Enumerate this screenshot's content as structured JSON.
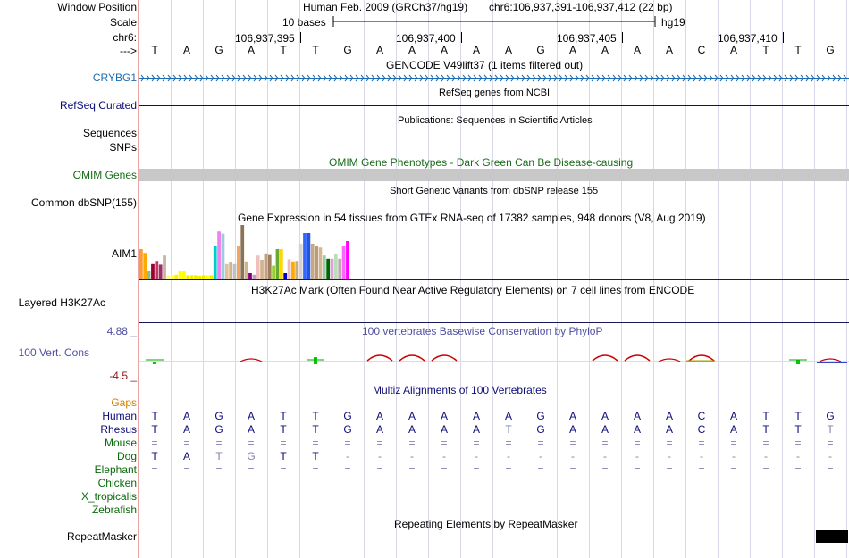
{
  "labels": {
    "window_position": "Window Position",
    "scale": "Scale",
    "chr": "chr6:",
    "arrow": "--->",
    "crybg1": "CRYBG1",
    "refseq": "RefSeq Curated",
    "sequences": "Sequences",
    "snps": "SNPs",
    "omim": "OMIM Genes",
    "dbsnp": "Common dbSNP(155)",
    "aim1": "AIM1",
    "h3k27ac": "Layered H3K27Ac",
    "phylop_max": "4.88 _",
    "cons": "100 Vert. Cons",
    "phylop_min": "-4.5 _",
    "gaps": "Gaps",
    "human": "Human",
    "rhesus": "Rhesus",
    "mouse": "Mouse",
    "dog": "Dog",
    "elephant": "Elephant",
    "chicken": "Chicken",
    "xtrop": "X_tropicalis",
    "zebrafish": "Zebrafish",
    "repeatmasker": "RepeatMasker"
  },
  "header": {
    "assembly": "Human Feb. 2009 (GRCh37/hg19)",
    "position": "chr6:106,937,391-106,937,412 (22 bp)",
    "scale_text": "10 bases",
    "scale_db": "hg19",
    "coords": [
      "106,937,395",
      "106,937,400",
      "106,937,405",
      "106,937,410"
    ]
  },
  "titles": {
    "gencode": "GENCODE V49lift37 (1 items filtered out)",
    "refseq": "RefSeq genes from NCBI",
    "publications": "Publications: Sequences in Scientific Articles",
    "omim": "OMIM Gene Phenotypes - Dark Green Can Be Disease-causing",
    "dbsnp": "Short Genetic Variants from dbSNP release 155",
    "gtex": "Gene Expression in 54 tissues from GTEx RNA-seq of 17382 samples, 948 donors (V8, Aug 2019)",
    "h3k27ac": "H3K27Ac Mark (Often Found Near Active Regulatory Elements) on 7 cell lines from ENCODE",
    "phylop": "100 vertebrates Basewise Conservation by PhyloP",
    "multiz": "Multiz Alignments of 100 Vertebrates",
    "repeatmasker": "Repeating Elements by RepeatMasker"
  },
  "sequence": {
    "ruler": [
      "T",
      "A",
      "G",
      "A",
      "T",
      "T",
      "G",
      "A",
      "A",
      "A",
      "A",
      "A",
      "G",
      "A",
      "A",
      "A",
      "A",
      "C",
      "A",
      "T",
      "T",
      "G"
    ],
    "human": [
      "T",
      "A",
      "G",
      "A",
      "T",
      "T",
      "G",
      "A",
      "A",
      "A",
      "A",
      "A",
      "G",
      "A",
      "A",
      "A",
      "A",
      "C",
      "A",
      "T",
      "T",
      "G"
    ],
    "rhesus": [
      "T",
      "A",
      "G",
      "A",
      "T",
      "T",
      "G",
      "A",
      "A",
      "A",
      "A",
      "T",
      "G",
      "A",
      "A",
      "A",
      "A",
      "C",
      "A",
      "T",
      "T",
      "T"
    ],
    "mouse": [
      "=",
      "=",
      "=",
      "=",
      "=",
      "=",
      "=",
      "=",
      "=",
      "=",
      "=",
      "=",
      "=",
      "=",
      "=",
      "=",
      "=",
      "=",
      "=",
      "=",
      "=",
      "="
    ],
    "dog": [
      "T",
      "A",
      "T",
      "G",
      "T",
      "T",
      "-",
      "-",
      "-",
      "-",
      "-",
      "-",
      "-",
      "-",
      "-",
      "-",
      "-",
      "-",
      "-",
      "-",
      "-",
      "-"
    ],
    "elephant": [
      "=",
      "=",
      "=",
      "=",
      "=",
      "=",
      "=",
      "=",
      "=",
      "=",
      "=",
      "=",
      "=",
      "=",
      "=",
      "=",
      "=",
      "=",
      "=",
      "=",
      "=",
      "="
    ]
  },
  "colors": {
    "gene_blue": "#1a6bb0",
    "refseq_navy": "#0c0c78",
    "omim_green": "#1a6b1a",
    "omim_bar": "#c8c8c8",
    "phylop_blue": "#5050a0",
    "phylop_red": "#8b1a1a",
    "gaps_orange": "#d08000",
    "mammal_navy": "#0c0c78",
    "vertebrate_green": "#0a6a0a"
  },
  "gtex_bars": {
    "max": 1.0,
    "values": [
      0.55,
      0.48,
      0.14,
      0.27,
      0.33,
      0.26,
      0.43,
      0.06,
      0.06,
      0.07,
      0.15,
      0.15,
      0.06,
      0.06,
      0.06,
      0.05,
      0.06,
      0.06,
      0.06,
      0.6,
      0.88,
      0.84,
      0.27,
      0.3,
      0.27,
      0.6,
      1.0,
      0.32,
      0.1,
      0.07,
      0.43,
      0.35,
      0.47,
      0.44,
      0.24,
      0.55,
      0.55,
      0.1,
      0.36,
      0.32,
      0.33,
      0.65,
      0.85,
      0.85,
      0.65,
      0.6,
      0.58,
      0.43,
      0.37,
      0.37,
      0.45,
      0.37,
      0.61,
      0.7
    ],
    "colors": [
      "#ff9933",
      "#ffaa00",
      "#8fbc8f",
      "#990033",
      "#cc3366",
      "#993366",
      "#c8b4a0",
      "#ffff66",
      "#ffff33",
      "#ffee00",
      "#ffff00",
      "#ffff00",
      "#eeee00",
      "#eeee00",
      "#eeee00",
      "#eeee00",
      "#eeee00",
      "#ffff00",
      "#eeee00",
      "#00cccc",
      "#ee82ee",
      "#99ccdd",
      "#e0c0a0",
      "#d2b48c",
      "#c0c0c0",
      "#f4a460",
      "#8b7355",
      "#d2b48c",
      "#800080",
      "#c0a0c0",
      "#f0c0c0",
      "#d2b48c",
      "#c0a080",
      "#a08060",
      "#9acd32",
      "#66aa33",
      "#ffd700",
      "#0000cc",
      "#eebbbb",
      "#ffaa00",
      "#ccaa88",
      "#d3d3d3",
      "#3366ff",
      "#2255dd",
      "#c8a882",
      "#bc9a7a",
      "#d4b896",
      "#99ccaa",
      "#006600",
      "#dda0dd",
      "#bbddbb",
      "#bbaaaa",
      "#ff66ff",
      "#ff00ff"
    ]
  },
  "phylop": {
    "max": 4.88,
    "min": -4.5,
    "values": [
      0.25,
      0,
      0,
      -0.45,
      0,
      1.0,
      0,
      -1.4,
      -1.4,
      -1.4,
      0,
      0,
      0,
      0,
      -1.4,
      -1.4,
      -0.2,
      -1.4,
      0,
      0,
      0.6,
      -0.5
    ]
  }
}
